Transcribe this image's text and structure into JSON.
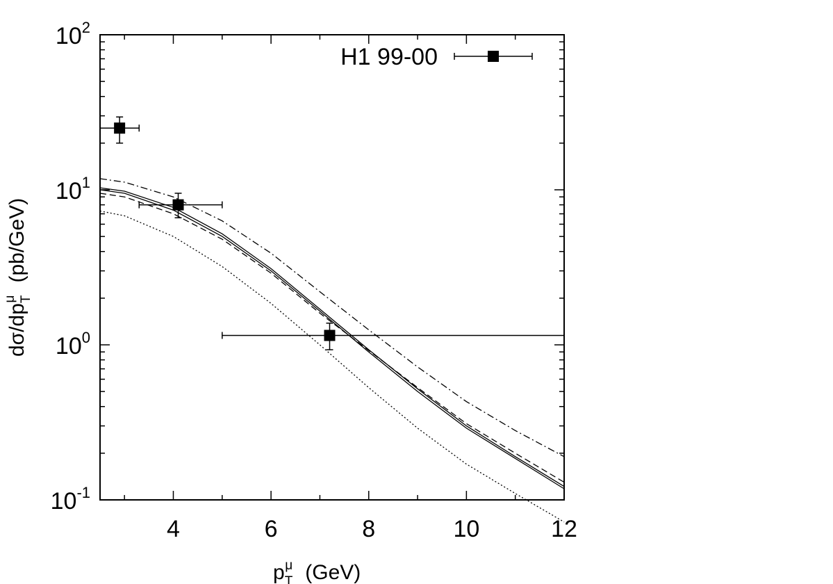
{
  "chart_data": {
    "type": "scatter",
    "x_scale": "linear",
    "y_scale": "log",
    "xlim": [
      2.5,
      12
    ],
    "ylim": [
      0.1,
      100
    ],
    "x_ticks": [
      {
        "value": 4,
        "label": "4"
      },
      {
        "value": 6,
        "label": "6"
      },
      {
        "value": 8,
        "label": "8"
      },
      {
        "value": 10,
        "label": "10"
      },
      {
        "value": 12,
        "label": "12"
      }
    ],
    "y_ticks": [
      {
        "value": 0.1,
        "base": "10",
        "exponent": "-1"
      },
      {
        "value": 1,
        "base": "10",
        "exponent": "0"
      },
      {
        "value": 10,
        "base": "10",
        "exponent": "1"
      },
      {
        "value": 100,
        "base": "10",
        "exponent": "2"
      }
    ],
    "xlabel": {
      "main": "p",
      "sub": "T",
      "sup": "μ",
      "unit": "(GeV)"
    },
    "ylabel": {
      "main": "dσ/dp",
      "sub": "T",
      "sup": "μ",
      "unit": "(pb/GeV)"
    },
    "legend": {
      "label": "H1 99-00",
      "position": "top-right"
    },
    "grid": false,
    "data_points": [
      {
        "x": 2.9,
        "y": 25.0,
        "xerr": [
          2.5,
          3.3
        ],
        "yerr": [
          20.0,
          29.5
        ]
      },
      {
        "x": 4.1,
        "y": 8.0,
        "xerr": [
          3.3,
          5.0
        ],
        "yerr": [
          6.6,
          9.5
        ]
      },
      {
        "x": 7.2,
        "y": 1.15,
        "xerr": [
          5.0,
          12.0
        ],
        "yerr": [
          0.93,
          1.38
        ]
      }
    ],
    "curves": [
      {
        "style": "solid",
        "x": [
          2.5,
          3,
          4,
          5,
          6,
          7,
          8,
          9,
          10,
          11,
          12
        ],
        "y": [
          10.3,
          9.8,
          7.7,
          5.2,
          3.1,
          1.7,
          0.93,
          0.52,
          0.3,
          0.19,
          0.122
        ]
      },
      {
        "style": "solid",
        "x": [
          2.5,
          3,
          4,
          5,
          6,
          7,
          8,
          9,
          10,
          11,
          12
        ],
        "y": [
          10.0,
          9.5,
          7.4,
          5.0,
          3.0,
          1.65,
          0.9,
          0.5,
          0.29,
          0.185,
          0.118
        ]
      },
      {
        "style": "dashed",
        "x": [
          2.5,
          3,
          4,
          5,
          6,
          7,
          8,
          9,
          10,
          11,
          12
        ],
        "y": [
          9.5,
          9.0,
          7.0,
          4.8,
          2.9,
          1.6,
          0.92,
          0.53,
          0.31,
          0.2,
          0.13
        ]
      },
      {
        "style": "dashdot",
        "x": [
          2.5,
          3,
          4,
          5,
          6,
          7,
          8,
          9,
          10,
          11,
          12
        ],
        "y": [
          11.8,
          11.2,
          9.0,
          6.3,
          3.9,
          2.2,
          1.25,
          0.72,
          0.43,
          0.28,
          0.19
        ]
      },
      {
        "style": "dotted",
        "x": [
          2.5,
          3,
          4,
          5,
          6,
          7,
          8,
          9,
          10,
          11,
          12
        ],
        "y": [
          7.3,
          6.8,
          5.0,
          3.2,
          1.85,
          1.0,
          0.53,
          0.29,
          0.17,
          0.11,
          0.072
        ]
      }
    ]
  }
}
